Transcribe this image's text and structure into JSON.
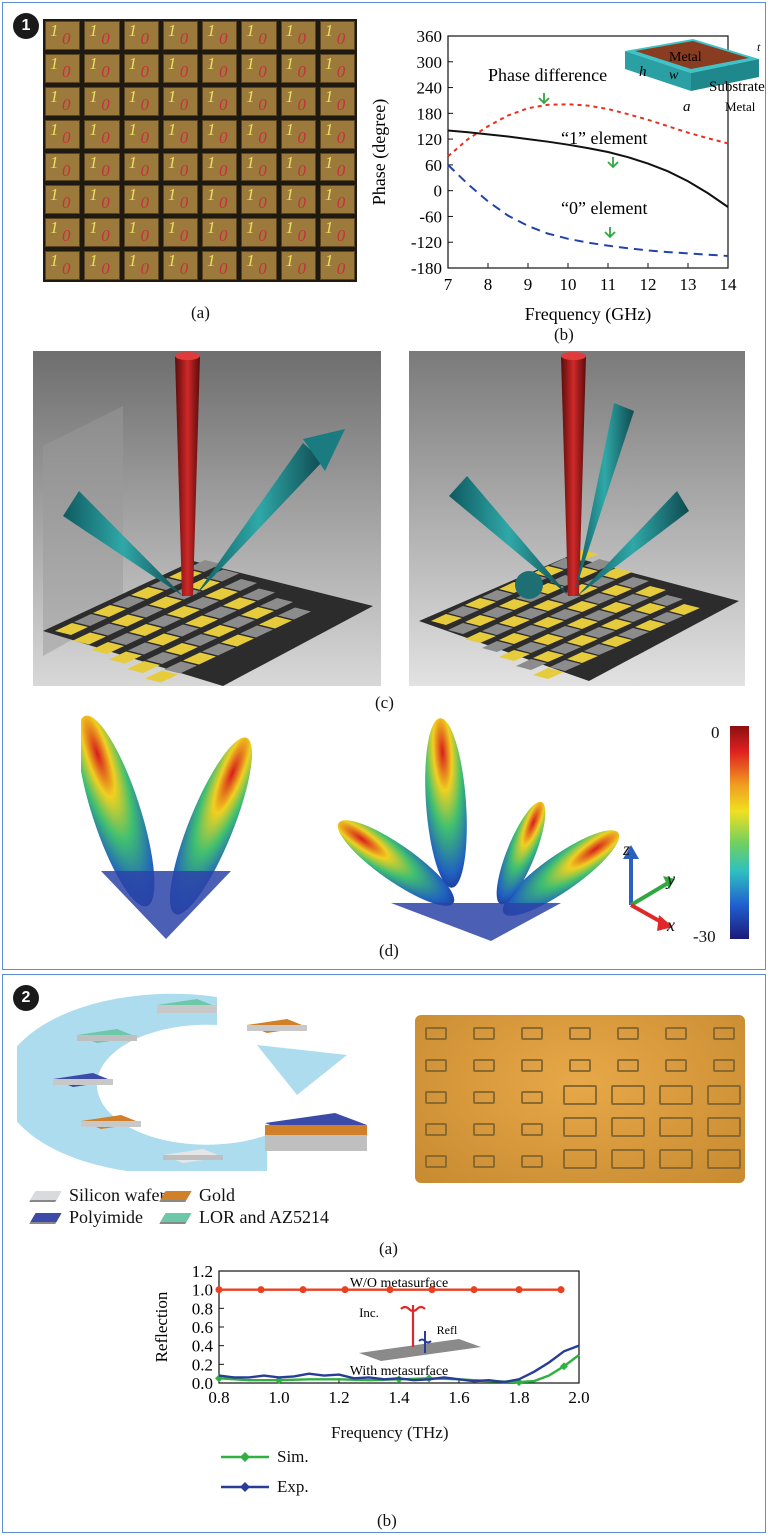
{
  "panel1": {
    "badge": "1",
    "sub_a": {
      "caption": "(a)",
      "cell_label_one": "1",
      "cell_label_zero": "0",
      "grid_rows": 8,
      "grid_cols": 8,
      "colors": {
        "cell_fill": "#9c7a3c",
        "cell_border": "#1c1810",
        "one": "#e8e060",
        "zero": "#c83040"
      }
    },
    "sub_b": {
      "caption": "(b)",
      "chart_data": {
        "type": "line",
        "xlabel": "Frequency (GHz)",
        "ylabel": "Phase (degree)",
        "xlim": [
          7,
          14
        ],
        "ylim": [
          -180,
          360
        ],
        "xticks": [
          7,
          8,
          9,
          10,
          11,
          12,
          13,
          14
        ],
        "yticks": [
          360,
          300,
          240,
          180,
          120,
          60,
          0,
          -60,
          -120,
          -180
        ],
        "series": [
          {
            "name": "Phase difference",
            "color": "#e83020",
            "style": "dotted",
            "x": [
              7,
              7.5,
              8,
              8.5,
              9,
              9.5,
              10,
              10.5,
              11,
              11.5,
              12,
              12.5,
              13,
              13.5,
              14
            ],
            "values": [
              80,
              120,
              150,
              175,
              192,
              200,
              201,
              198,
              190,
              178,
              165,
              150,
              135,
              122,
              110
            ]
          },
          {
            "name": "“1” element",
            "color": "#111111",
            "style": "solid",
            "x": [
              7,
              7.5,
              8,
              8.5,
              9,
              9.5,
              10,
              10.5,
              11,
              11.5,
              12,
              12.5,
              13,
              13.5,
              14
            ],
            "values": [
              140,
              136,
              131,
              126,
              120,
              114,
              107,
              99,
              90,
              78,
              63,
              45,
              22,
              -6,
              -38
            ]
          },
          {
            "name": "“0” element",
            "color": "#2244aa",
            "style": "dashed",
            "x": [
              7,
              7.5,
              8,
              8.5,
              9,
              9.5,
              10,
              10.5,
              11,
              11.5,
              12,
              12.5,
              13,
              13.5,
              14
            ],
            "values": [
              60,
              15,
              -25,
              -58,
              -82,
              -100,
              -112,
              -121,
              -128,
              -134,
              -139,
              -143,
              -146,
              -149,
              -152
            ]
          }
        ],
        "annotations": [
          "Phase difference",
          "“1” element",
          "“0” element"
        ],
        "inset_labels": [
          "Metal",
          "t",
          "h",
          "w",
          "Substrate",
          "a",
          "Metal"
        ]
      }
    },
    "sub_c": {
      "caption": "(c)"
    },
    "sub_d": {
      "caption": "(d)",
      "colorbar_max": "0",
      "colorbar_min": "-30",
      "axes": {
        "z": "z",
        "y": "y",
        "x": "x"
      }
    }
  },
  "panel2": {
    "badge": "2",
    "sub_a": {
      "caption": "(a)",
      "legend": [
        {
          "label": "Silicon wafer",
          "color": "#d9dadc"
        },
        {
          "label": "Gold",
          "color": "#d08028"
        },
        {
          "label": "Polyimide",
          "color": "#3c4aa8"
        },
        {
          "label": "LOR and AZ5214",
          "color": "#6cc8a8"
        }
      ]
    },
    "sub_b": {
      "caption": "(b)",
      "chart_data": {
        "type": "line",
        "xlabel": "Frequency (THz)",
        "ylabel": "Reflection",
        "xlim": [
          0.8,
          2.0
        ],
        "ylim": [
          0.0,
          1.2
        ],
        "xticks": [
          "0.8",
          "1.0",
          "1.2",
          "1.4",
          "1.6",
          "1.8",
          "2.0"
        ],
        "yticks": [
          "1.2",
          "1.0",
          "0.8",
          "0.6",
          "0.4",
          "0.2",
          "0.0"
        ],
        "series": [
          {
            "name": "W/O metasurface",
            "color": "#e84020",
            "x": [
              0.8,
              0.94,
              1.08,
              1.22,
              1.37,
              1.51,
              1.65,
              1.8,
              1.94
            ],
            "values": [
              1.0,
              1.0,
              1.0,
              1.0,
              1.0,
              1.0,
              1.0,
              1.0,
              1.0
            ]
          },
          {
            "name": "Sim.",
            "color": "#30b040",
            "x": [
              0.8,
              0.9,
              1.0,
              1.1,
              1.2,
              1.3,
              1.4,
              1.5,
              1.6,
              1.7,
              1.8,
              1.85,
              1.9,
              1.95,
              2.0
            ],
            "values": [
              0.05,
              0.03,
              0.03,
              0.04,
              0.04,
              0.03,
              0.04,
              0.05,
              0.04,
              0.02,
              0.01,
              0.02,
              0.08,
              0.18,
              0.3
            ]
          },
          {
            "name": "Exp.",
            "color": "#283c98",
            "x": [
              0.8,
              0.85,
              0.9,
              0.95,
              1.0,
              1.05,
              1.1,
              1.15,
              1.2,
              1.25,
              1.3,
              1.35,
              1.4,
              1.45,
              1.5,
              1.55,
              1.6,
              1.65,
              1.7,
              1.75,
              1.8,
              1.85,
              1.9,
              1.95,
              2.0
            ],
            "values": [
              0.08,
              0.06,
              0.06,
              0.08,
              0.06,
              0.07,
              0.1,
              0.08,
              0.09,
              0.05,
              0.06,
              0.04,
              0.05,
              0.03,
              0.04,
              0.06,
              0.04,
              0.02,
              0.03,
              0.01,
              0.04,
              0.12,
              0.22,
              0.34,
              0.4
            ]
          }
        ],
        "annotations": [
          "W/O metasurface",
          "With metasurface",
          "Inc.",
          "Refl"
        ],
        "legend": [
          "Sim.",
          "Exp."
        ]
      }
    }
  }
}
